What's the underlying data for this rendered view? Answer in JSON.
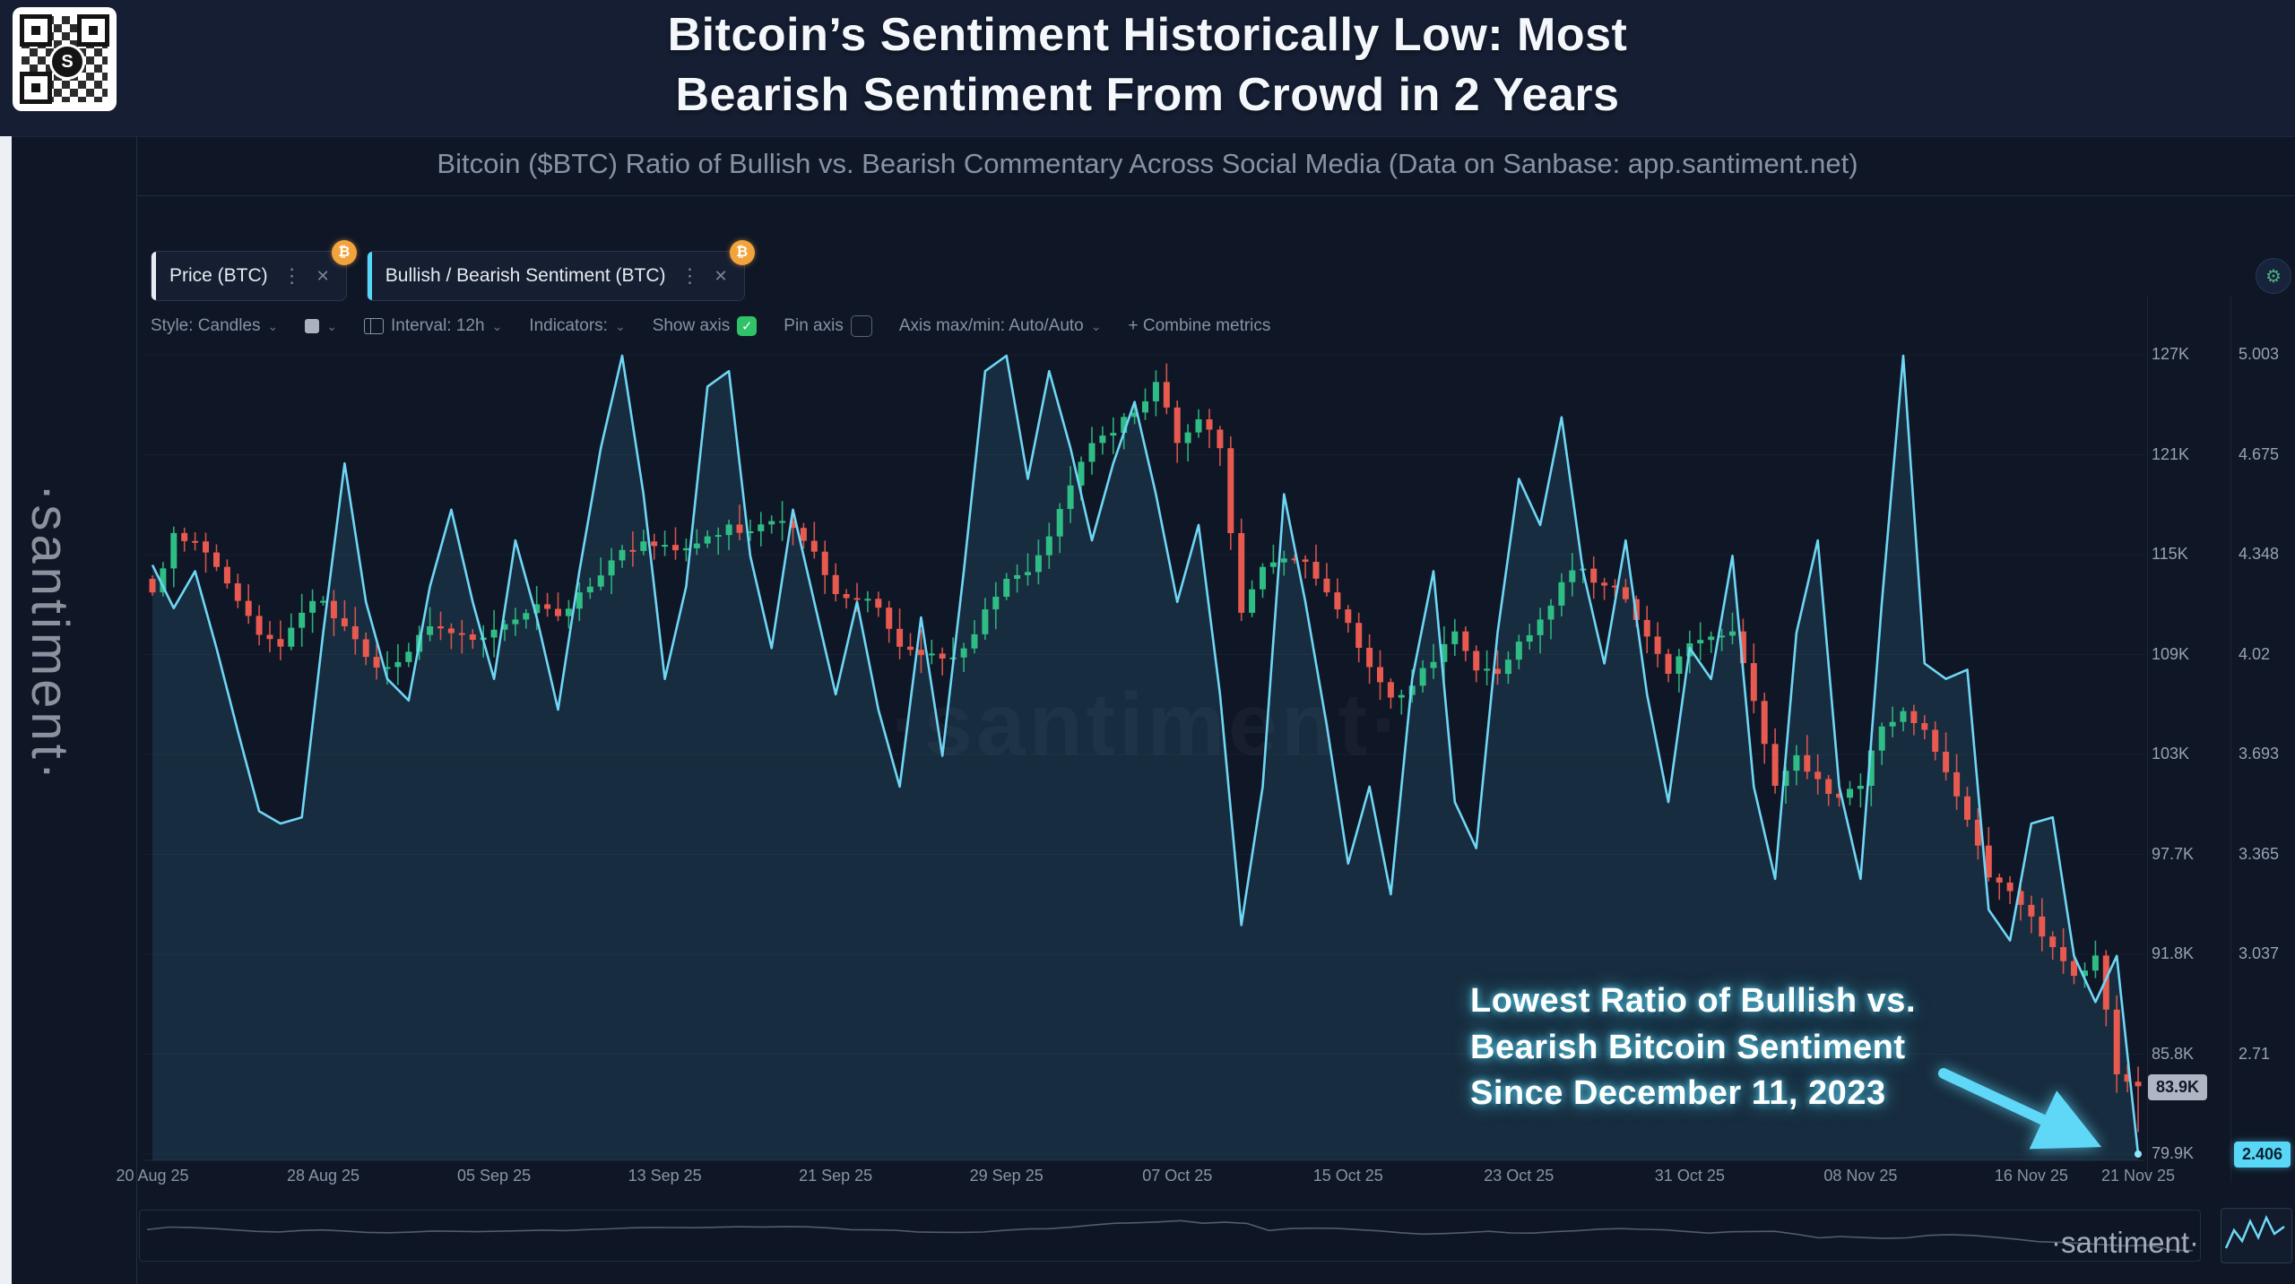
{
  "header": {
    "title_line1": "Bitcoin’s Sentiment Historically Low: Most",
    "title_line2": "Bearish Sentiment From Crowd in 2 Years",
    "subtitle": "Bitcoin ($BTC) Ratio of Bullish vs. Bearish Commentary Across Social Media (Data on Sanbase: app.santiment.net)"
  },
  "branding": {
    "vertical_text": "·santiment·",
    "watermark": "·santiment·",
    "logo_bottom_right": "·santiment·",
    "qr_center": "S"
  },
  "tabs": [
    {
      "label": "Price (BTC)",
      "badge": "₿",
      "menu_icon": "⋮",
      "close_icon": "✕"
    },
    {
      "label": "Bullish / Bearish Sentiment (BTC)",
      "badge": "₿",
      "menu_icon": "⋮",
      "close_icon": "✕"
    }
  ],
  "toolbar": {
    "style": "Style: Candles",
    "interval": "Interval: 12h",
    "indicators": "Indicators:",
    "show_axis": "Show axis",
    "show_axis_check": "✓",
    "pin_axis": "Pin axis",
    "axis_maxmin": "Axis max/min: Auto/Auto",
    "combine": "+   Combine metrics",
    "chevron": "⌄",
    "gear": "⚙"
  },
  "annotation": {
    "line1": "Lowest Ratio of Bullish vs.",
    "line2": "Bearish Bitcoin Sentiment",
    "line3": "Since December 11, 2023"
  },
  "badges": {
    "current_price": "83.9K",
    "current_sentiment": "2.406"
  },
  "colors": {
    "candle_up": "#30bd85",
    "candle_down": "#e85a50",
    "sentiment_line": "#6fd6f5",
    "sentiment_fill": "rgba(74,168,204,0.15)",
    "accent_cyan": "#57d7f7",
    "badge_orange": "#f2a33c",
    "checkbox_green": "#2ec269"
  },
  "chart_data": {
    "type": "candlestick+line",
    "title": "Bitcoin price (candles) vs Bullish/Bearish sentiment ratio (cyan line)",
    "series_names": [
      "Price (BTC)",
      "Bullish / Bearish Sentiment (BTC)"
    ],
    "interval": "12h",
    "legend_position": "tabs-top-left",
    "grid": "off",
    "price_axis_ticks": [
      "127K",
      "121K",
      "115K",
      "109K",
      "103K",
      "97.7K",
      "91.8K",
      "85.8K",
      "79.9K"
    ],
    "sentiment_axis_ticks": [
      "5.003",
      "4.675",
      "4.348",
      "4.02",
      "3.693",
      "3.365",
      "3.037",
      "2.71",
      "2.406"
    ],
    "price_range_k": [
      79.9,
      127
    ],
    "sentiment_range": [
      2.406,
      5.003
    ],
    "x_labels": [
      "20 Aug 25",
      "28 Aug 25",
      "05 Sep 25",
      "13 Sep 25",
      "21 Sep 25",
      "29 Sep 25",
      "07 Oct 25",
      "15 Oct 25",
      "23 Oct 25",
      "31 Oct 25",
      "08 Nov 25",
      "16 Nov 25",
      "21 Nov 25"
    ],
    "x_label_day_index": [
      0,
      8,
      16,
      24,
      32,
      40,
      48,
      56,
      64,
      72,
      80,
      88,
      93
    ],
    "price_close_k": [
      113.0,
      116.5,
      116.0,
      114.5,
      112.5,
      110.5,
      109.8,
      111.8,
      112.5,
      111.0,
      109.2,
      108.6,
      109.5,
      111.0,
      110.6,
      110.2,
      110.8,
      111.4,
      112.3,
      111.6,
      113.0,
      114.0,
      115.5,
      116.0,
      115.8,
      115.6,
      116.3,
      117.0,
      116.6,
      117.2,
      116.8,
      115.4,
      112.9,
      112.6,
      112.1,
      109.8,
      109.3,
      109.1,
      109.7,
      112.0,
      113.8,
      114.2,
      116.3,
      119.3,
      121.8,
      122.4,
      123.6,
      125.4,
      121.8,
      123.2,
      121.5,
      111.8,
      114.5,
      115.0,
      114.8,
      113.0,
      111.2,
      108.6,
      106.8,
      107.5,
      108.9,
      110.7,
      108.4,
      108.2,
      110.1,
      111.4,
      113.6,
      114.4,
      113.4,
      112.6,
      110.4,
      108.2,
      110.0,
      110.4,
      110.7,
      106.6,
      101.6,
      103.4,
      102.0,
      100.9,
      101.6,
      105.1,
      106.0,
      104.9,
      102.4,
      99.6,
      96.2,
      95.4,
      93.9,
      92.1,
      90.4,
      91.6,
      84.6,
      83.9
    ],
    "sentiment_ratio": [
      4.32,
      4.18,
      4.3,
      4.05,
      3.78,
      3.52,
      3.48,
      3.5,
      4.1,
      4.65,
      4.2,
      3.95,
      3.88,
      4.25,
      4.5,
      4.2,
      3.95,
      4.4,
      4.15,
      3.85,
      4.3,
      4.7,
      5.0,
      4.55,
      3.95,
      4.25,
      4.9,
      4.95,
      4.35,
      4.05,
      4.5,
      4.2,
      3.9,
      4.2,
      3.85,
      3.6,
      4.15,
      3.7,
      4.3,
      4.95,
      5.0,
      4.6,
      4.95,
      4.7,
      4.4,
      4.65,
      4.85,
      4.55,
      4.2,
      4.45,
      3.9,
      3.15,
      3.6,
      4.55,
      4.2,
      3.8,
      3.35,
      3.6,
      3.25,
      3.95,
      4.3,
      3.55,
      3.4,
      4.1,
      4.6,
      4.45,
      4.8,
      4.3,
      4.0,
      4.4,
      3.9,
      3.55,
      4.05,
      3.95,
      4.35,
      3.6,
      3.3,
      4.1,
      4.4,
      3.6,
      3.3,
      4.2,
      5.0,
      4.0,
      3.95,
      3.98,
      3.2,
      3.1,
      3.48,
      3.5,
      3.05,
      2.9,
      3.05,
      2.406
    ],
    "lowest_point": {
      "date": "21 Nov 25",
      "sentiment": 2.406,
      "price_k": 83.9
    }
  }
}
